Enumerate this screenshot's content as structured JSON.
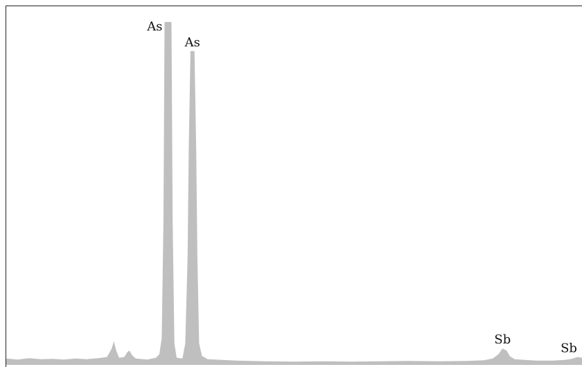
{
  "chart_data": {
    "type": "area",
    "title": "",
    "xlabel": "",
    "ylabel": "",
    "xlim": [
      0,
      100
    ],
    "ylim": [
      0,
      100
    ],
    "grid": false,
    "fill_color": "#bfbfbf",
    "frame_color": "#222222",
    "series": [
      {
        "values": [
          [
            0,
            1.8
          ],
          [
            2,
            1.5
          ],
          [
            4,
            1.9
          ],
          [
            6,
            1.6
          ],
          [
            8,
            1.7
          ],
          [
            10,
            1.5
          ],
          [
            12,
            1.8
          ],
          [
            14,
            1.6
          ],
          [
            16,
            1.9
          ],
          [
            17.5,
            2.2
          ],
          [
            18.3,
            4.5
          ],
          [
            18.7,
            6.6
          ],
          [
            19.1,
            4.0
          ],
          [
            19.6,
            2.0
          ],
          [
            20.5,
            2.2
          ],
          [
            21.0,
            3.5
          ],
          [
            21.4,
            4.0
          ],
          [
            21.9,
            2.6
          ],
          [
            22.5,
            1.8
          ],
          [
            24.5,
            1.5
          ],
          [
            26.0,
            2.0
          ],
          [
            26.6,
            3.0
          ],
          [
            27.0,
            7.5
          ],
          [
            27.3,
            40.0
          ],
          [
            27.5,
            95.6
          ],
          [
            28.7,
            95.6
          ],
          [
            28.9,
            40.0
          ],
          [
            29.2,
            6.0
          ],
          [
            29.6,
            2.0
          ],
          [
            30.6,
            1.8
          ],
          [
            31.1,
            6.0
          ],
          [
            31.5,
            30.5
          ],
          [
            31.7,
            60.0
          ],
          [
            32.0,
            87.5
          ],
          [
            32.7,
            87.5
          ],
          [
            33.0,
            60.0
          ],
          [
            33.2,
            30.0
          ],
          [
            33.5,
            6.0
          ],
          [
            34.0,
            2.5
          ],
          [
            35,
            1.6
          ],
          [
            40,
            1.2
          ],
          [
            45,
            1.0
          ],
          [
            50,
            0.9
          ],
          [
            55,
            1.0
          ],
          [
            60,
            0.9
          ],
          [
            65,
            1.0
          ],
          [
            70,
            1.1
          ],
          [
            75,
            1.0
          ],
          [
            80,
            1.1
          ],
          [
            83,
            1.3
          ],
          [
            84.5,
            1.8
          ],
          [
            85.5,
            3.0
          ],
          [
            86.2,
            4.6
          ],
          [
            86.9,
            4.0
          ],
          [
            87.5,
            2.4
          ],
          [
            88.3,
            1.6
          ],
          [
            92,
            1.2
          ],
          [
            95,
            1.2
          ],
          [
            97,
            1.4
          ],
          [
            98.2,
            1.7
          ],
          [
            99.2,
            2.2
          ],
          [
            100,
            2.0
          ]
        ]
      }
    ],
    "annotations": [
      {
        "text": "As",
        "x": 28.1,
        "y": 95.6,
        "anchor": "left"
      },
      {
        "text": "As",
        "x": 32.35,
        "y": 87.5,
        "anchor": "top"
      },
      {
        "text": "Sb",
        "x": 86.2,
        "y": 4.6,
        "anchor": "top"
      },
      {
        "text": "Sb",
        "x": 99.5,
        "y": 2.2,
        "anchor": "top"
      }
    ]
  }
}
